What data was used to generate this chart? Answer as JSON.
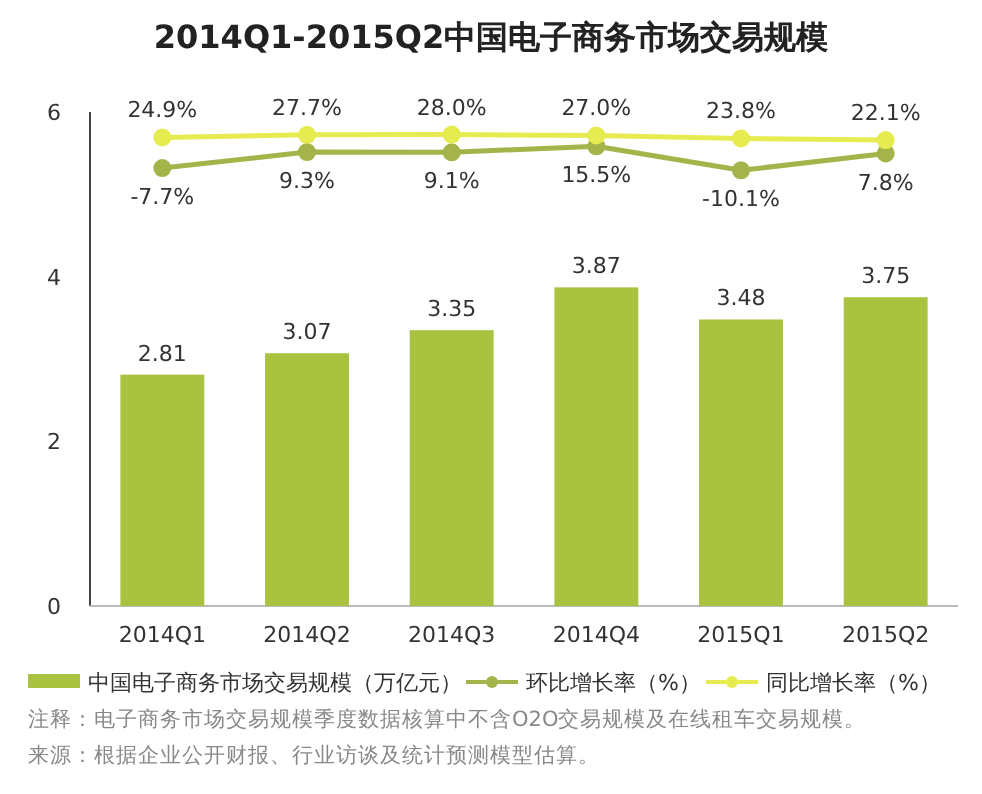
{
  "chart_data": {
    "type": "bar",
    "title": "2014Q1-2015Q2中国电子商务市场交易规模",
    "categories": [
      "2014Q1",
      "2014Q2",
      "2014Q3",
      "2014Q4",
      "2015Q1",
      "2015Q2"
    ],
    "series": [
      {
        "name": "中国电子商务市场交易规模（万亿元）",
        "color": "#a9c23f",
        "values": [
          2.81,
          3.07,
          3.35,
          3.87,
          3.48,
          3.75
        ],
        "value_labels": [
          "2.81",
          "3.07",
          "3.35",
          "3.87",
          "3.48",
          "3.75"
        ]
      },
      {
        "type": "line",
        "axis": "y2",
        "name": "环比增长率（%）",
        "color": "#a5b44a",
        "values": [
          -7.7,
          9.3,
          9.1,
          15.5,
          -10.1,
          7.8
        ],
        "value_labels": [
          "-7.7%",
          "9.3%",
          "9.1%",
          "15.5%",
          "-10.1%",
          "7.8%"
        ]
      },
      {
        "type": "line",
        "axis": "y2",
        "name": "同比增长率（%）",
        "color": "#e6ec50",
        "values": [
          24.9,
          27.7,
          28.0,
          27.0,
          23.8,
          22.1
        ],
        "value_labels": [
          "24.9%",
          "27.7%",
          "28.0%",
          "27.0%",
          "23.8%",
          "22.1%"
        ]
      }
    ],
    "ylim": [
      0,
      6
    ],
    "yticks": [
      0,
      2,
      4,
      6
    ],
    "y2lim": [
      -474,
      52
    ],
    "tick_labels": "xy",
    "marker": "circle",
    "legend": "bottom",
    "annotations": [
      "注释：电子商务市场交易规模季度数据核算中不含O2O交易规模及在线租车交易规模。",
      "来源：根据企业公开财报、行业访谈及统计预测模型估算。"
    ]
  }
}
